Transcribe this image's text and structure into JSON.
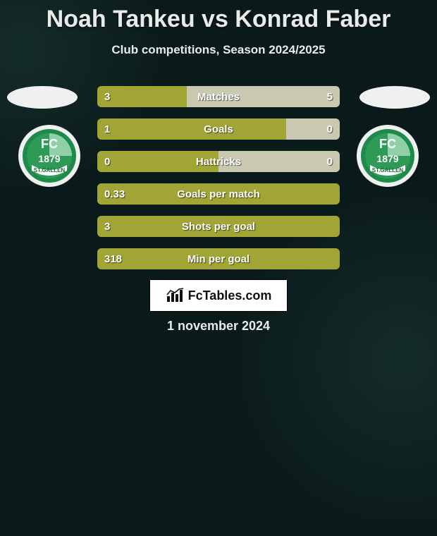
{
  "title": "Noah Tankeu vs Konrad Faber",
  "subtitle": "Club competitions, Season 2024/2025",
  "date": "1 november 2024",
  "footer_brand": "FcTables.com",
  "colors": {
    "left_bar": "#a0a536",
    "right_bar": "#c8c9b0",
    "bar_track": "#7a8070",
    "title": "#e8ebe9",
    "background": "#0a1a1a"
  },
  "club_logo": {
    "outer": "#f0f0f0",
    "ring": "#1f8a4a",
    "inner_main": "#2d9a55",
    "inner_light": "#8fd0a8",
    "text_color": "#ffffff",
    "band_text_color": "#1f6b3c",
    "top_text": "FC",
    "year": "1879",
    "band_text": "ST.GALLEN"
  },
  "bars": [
    {
      "label": "Matches",
      "left": "3",
      "right": "5",
      "left_pct": 37,
      "right_pct": 63
    },
    {
      "label": "Goals",
      "left": "1",
      "right": "0",
      "left_pct": 78,
      "right_pct": 22
    },
    {
      "label": "Hattricks",
      "left": "0",
      "right": "0",
      "left_pct": 50,
      "right_pct": 50
    },
    {
      "label": "Goals per match",
      "left": "0.33",
      "right": "",
      "left_pct": 100,
      "right_pct": 0
    },
    {
      "label": "Shots per goal",
      "left": "3",
      "right": "",
      "left_pct": 100,
      "right_pct": 0
    },
    {
      "label": "Min per goal",
      "left": "318",
      "right": "",
      "left_pct": 100,
      "right_pct": 0
    }
  ]
}
